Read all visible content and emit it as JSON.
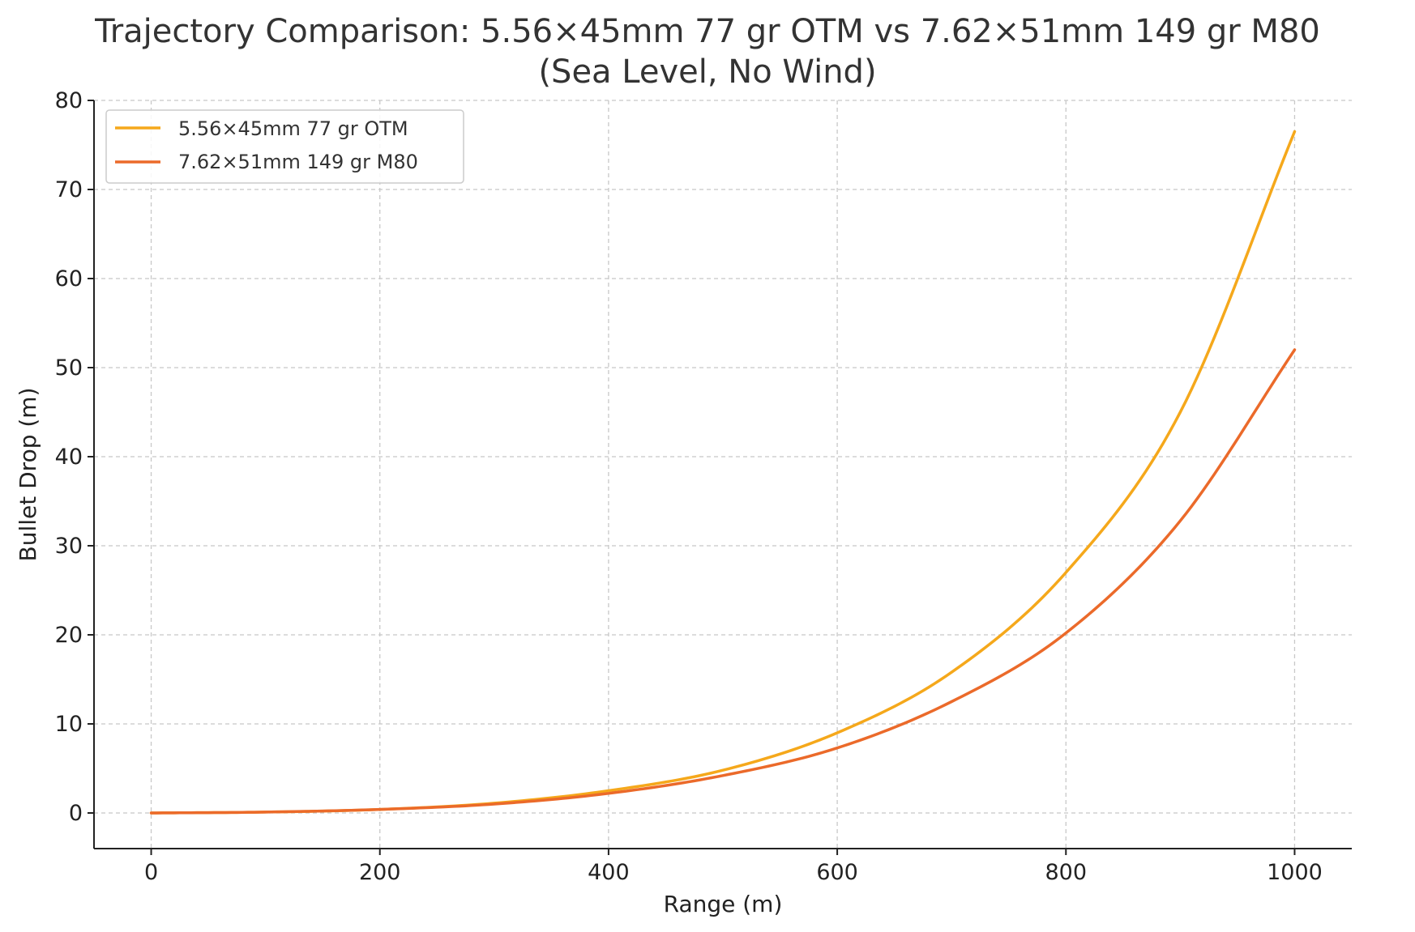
{
  "chart_data": {
    "type": "line",
    "title_lines": [
      "Trajectory Comparison: 5.56×45mm 77 gr OTM vs 7.62×51mm 149 gr M80",
      "(Sea Level, No Wind)"
    ],
    "xlabel": "Range (m)",
    "ylabel": "Bullet Drop (m)",
    "xlim": [
      -50,
      1050
    ],
    "ylim": [
      -4,
      80
    ],
    "xticks": [
      0,
      200,
      400,
      600,
      800,
      1000
    ],
    "yticks": [
      0,
      10,
      20,
      30,
      40,
      50,
      60,
      70,
      80
    ],
    "grid": true,
    "legend_position": "top-left",
    "x": [
      0,
      100,
      200,
      300,
      400,
      500,
      600,
      700,
      800,
      900,
      1000
    ],
    "series": [
      {
        "name": "5.56×45mm 77 gr OTM",
        "color": "#f5a81b",
        "values": [
          0,
          0.1,
          0.4,
          1.1,
          2.5,
          4.8,
          9.0,
          15.8,
          27.0,
          45.0,
          76.5
        ]
      },
      {
        "name": "7.62×51mm 149 gr M80",
        "color": "#eb6a2a",
        "values": [
          0,
          0.1,
          0.4,
          1.0,
          2.2,
          4.2,
          7.3,
          12.5,
          20.2,
          32.8,
          52.0
        ]
      }
    ]
  }
}
